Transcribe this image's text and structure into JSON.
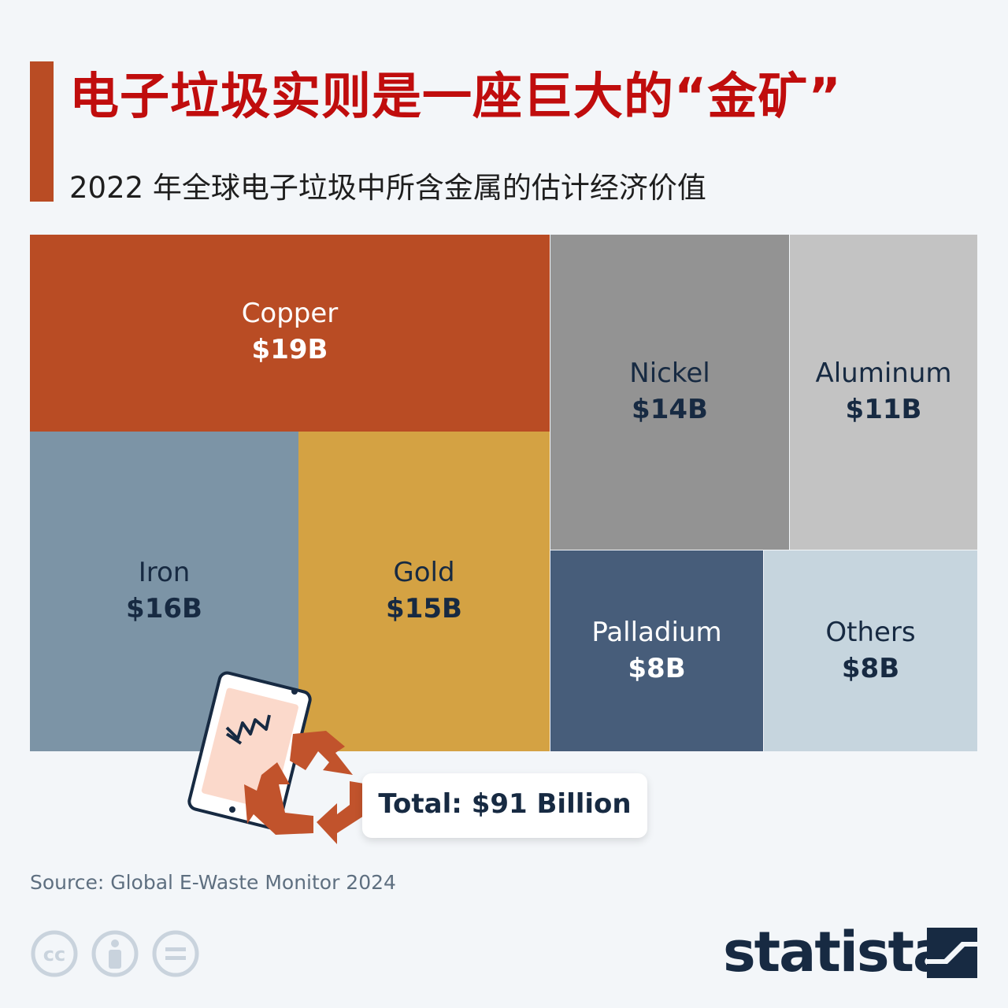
{
  "header": {
    "title": "电子垃圾实则是一座巨大的“金矿”",
    "subtitle": "2022 年全球电子垃圾中所含金属的估计经济价值"
  },
  "colors": {
    "accent": "#b94c24",
    "title": "#c00d0d",
    "copper": "#b94c24",
    "nickel": "#939393",
    "aluminum": "#c3c3c3",
    "iron": "#7c94a6",
    "gold": "#d4a243",
    "palladium": "#475d7a",
    "others": "#c6d5de",
    "dark_text": "#172a42"
  },
  "chart_data": {
    "type": "treemap",
    "unit": "billion USD",
    "items": [
      {
        "name": "Copper",
        "value": 19,
        "label": "$19B"
      },
      {
        "name": "Iron",
        "value": 16,
        "label": "$16B"
      },
      {
        "name": "Gold",
        "value": 15,
        "label": "$15B"
      },
      {
        "name": "Nickel",
        "value": 14,
        "label": "$14B"
      },
      {
        "name": "Aluminum",
        "value": 11,
        "label": "$11B"
      },
      {
        "name": "Palladium",
        "value": 8,
        "label": "$8B"
      },
      {
        "name": "Others",
        "value": 8,
        "label": "$8B"
      }
    ],
    "total_label": "Total: $91 Billion"
  },
  "footer": {
    "source": "Source: Global E-Waste Monitor 2024",
    "license_icons": [
      "cc-icon",
      "attribution-icon",
      "no-derivatives-icon"
    ],
    "logo": "statista"
  }
}
